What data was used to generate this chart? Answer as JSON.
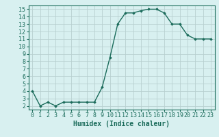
{
  "x": [
    0,
    1,
    2,
    3,
    4,
    5,
    6,
    7,
    8,
    9,
    10,
    11,
    12,
    13,
    14,
    15,
    16,
    17,
    18,
    19,
    20,
    21,
    22,
    23
  ],
  "y": [
    4,
    2,
    2.5,
    2,
    2.5,
    2.5,
    2.5,
    2.5,
    2.5,
    4.5,
    8.5,
    13,
    14.5,
    14.5,
    14.8,
    15,
    15,
    14.5,
    13,
    13,
    11.5,
    11,
    11,
    11
  ],
  "xlim": [
    -0.5,
    23.5
  ],
  "ylim": [
    1.5,
    15.5
  ],
  "yticks": [
    2,
    3,
    4,
    5,
    6,
    7,
    8,
    9,
    10,
    11,
    12,
    13,
    14,
    15
  ],
  "xticks": [
    0,
    1,
    2,
    3,
    4,
    5,
    6,
    7,
    8,
    9,
    10,
    11,
    12,
    13,
    14,
    15,
    16,
    17,
    18,
    19,
    20,
    21,
    22,
    23
  ],
  "xlabel": "Humidex (Indice chaleur)",
  "line_color": "#1a6b5a",
  "bg_color": "#d8f0f0",
  "grid_color": "#b8d0d0",
  "marker": "D",
  "marker_size": 1.8,
  "line_width": 1.0,
  "xlabel_fontsize": 7,
  "tick_fontsize": 6
}
